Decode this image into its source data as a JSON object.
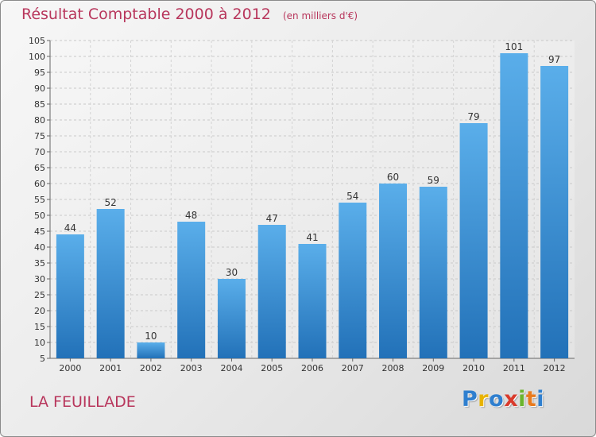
{
  "title": "Résultat Comptable 2000 à 2012",
  "subtitle": "(en milliers d'€)",
  "town": "LA FEUILLADE",
  "logo": [
    "P",
    "r",
    "o",
    "x",
    "i",
    "t",
    "i"
  ],
  "logo_colors": [
    "#2f7fcf",
    "#e8b300",
    "#2f7fcf",
    "#d93a2b",
    "#6ab42d",
    "#e87a1d",
    "#2f7fcf"
  ],
  "colors": {
    "bar": "#3a8fd8",
    "bar_light": "#5aaeea",
    "bar_dark": "#2271b8",
    "title": "#b8365c"
  },
  "chart_data": {
    "type": "bar",
    "categories": [
      "2000",
      "2001",
      "2002",
      "2003",
      "2004",
      "2005",
      "2006",
      "2007",
      "2008",
      "2009",
      "2010",
      "2011",
      "2012"
    ],
    "values": [
      44,
      52,
      10,
      48,
      30,
      47,
      41,
      54,
      60,
      59,
      79,
      101,
      97
    ],
    "ylim": [
      5,
      105
    ],
    "yticks": [
      5,
      10,
      15,
      20,
      25,
      30,
      35,
      40,
      45,
      50,
      55,
      60,
      65,
      70,
      75,
      80,
      85,
      90,
      95,
      100,
      105
    ],
    "grid": true,
    "xlabel": "",
    "ylabel": ""
  }
}
